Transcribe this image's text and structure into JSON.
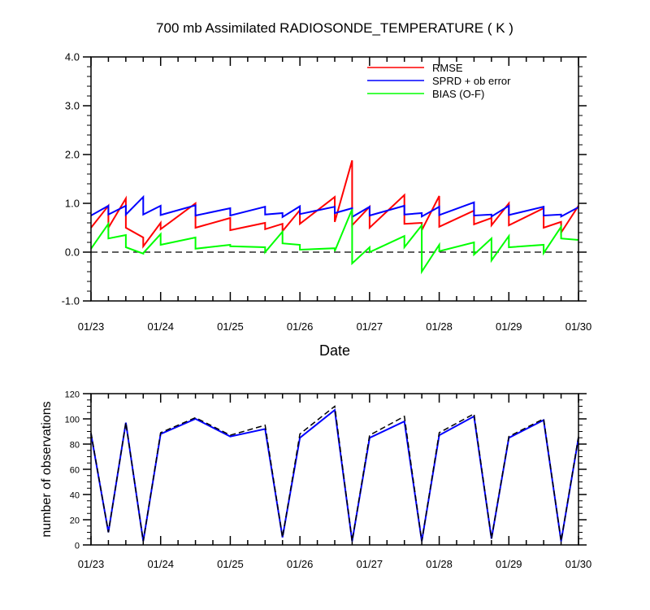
{
  "chart_data": [
    {
      "type": "line",
      "title": "700 mb Assimilated RADIOSONDE_TEMPERATURE ( K )",
      "xlabel": "Date",
      "ylabel": "",
      "ylim": [
        -1.0,
        4.0
      ],
      "yticks": [
        "-1.0",
        "0.0",
        "1.0",
        "2.0",
        "3.0",
        "4.0"
      ],
      "xticks": [
        "01/23",
        "01/24",
        "01/25",
        "01/26",
        "01/27",
        "01/28",
        "01/29",
        "01/30"
      ],
      "xlim": [
        0,
        7
      ],
      "zero_line": "dashed",
      "legend_position": "top-right",
      "series": [
        {
          "name": "RMSE",
          "color": "#ff0000",
          "points": [
            [
              0,
              0.5
            ],
            [
              0.25,
              0.95
            ],
            [
              0.25,
              0.5
            ],
            [
              0.5,
              1.1
            ],
            [
              0.5,
              0.5
            ],
            [
              0.75,
              0.3
            ],
            [
              0.75,
              0.12
            ],
            [
              1,
              0.6
            ],
            [
              1,
              0.47
            ],
            [
              1.5,
              1.0
            ],
            [
              1.5,
              0.5
            ],
            [
              2,
              0.7
            ],
            [
              2,
              0.45
            ],
            [
              2.5,
              0.6
            ],
            [
              2.5,
              0.47
            ],
            [
              2.75,
              0.58
            ],
            [
              2.75,
              0.43
            ],
            [
              3,
              0.86
            ],
            [
              3,
              0.58
            ],
            [
              3.5,
              1.13
            ],
            [
              3.5,
              0.62
            ],
            [
              3.75,
              1.88
            ],
            [
              3.75,
              0.55
            ],
            [
              4,
              0.93
            ],
            [
              4,
              0.5
            ],
            [
              4.5,
              1.17
            ],
            [
              4.5,
              0.58
            ],
            [
              4.75,
              0.6
            ],
            [
              4.75,
              0.45
            ],
            [
              5,
              1.15
            ],
            [
              5,
              0.52
            ],
            [
              5.5,
              0.85
            ],
            [
              5.5,
              0.57
            ],
            [
              5.75,
              0.7
            ],
            [
              5.75,
              0.55
            ],
            [
              6,
              1.0
            ],
            [
              6,
              0.55
            ],
            [
              6.5,
              0.9
            ],
            [
              6.5,
              0.5
            ],
            [
              6.75,
              0.62
            ],
            [
              6.75,
              0.4
            ],
            [
              7,
              0.95
            ]
          ]
        },
        {
          "name": "SPRD + ob error",
          "color": "#0000ff",
          "points": [
            [
              0,
              0.75
            ],
            [
              0.25,
              0.95
            ],
            [
              0.25,
              0.77
            ],
            [
              0.5,
              0.95
            ],
            [
              0.5,
              0.77
            ],
            [
              0.75,
              1.13
            ],
            [
              0.75,
              0.77
            ],
            [
              1,
              0.95
            ],
            [
              1,
              0.76
            ],
            [
              1.5,
              0.96
            ],
            [
              1.5,
              0.75
            ],
            [
              2,
              0.9
            ],
            [
              2,
              0.75
            ],
            [
              2.5,
              0.93
            ],
            [
              2.5,
              0.77
            ],
            [
              2.75,
              0.8
            ],
            [
              2.75,
              0.72
            ],
            [
              3,
              0.94
            ],
            [
              3,
              0.78
            ],
            [
              3.5,
              0.93
            ],
            [
              3.5,
              0.8
            ],
            [
              3.75,
              0.9
            ],
            [
              3.75,
              0.72
            ],
            [
              4,
              0.93
            ],
            [
              4,
              0.75
            ],
            [
              4.5,
              0.95
            ],
            [
              4.5,
              0.77
            ],
            [
              4.75,
              0.8
            ],
            [
              4.75,
              0.73
            ],
            [
              5,
              0.93
            ],
            [
              5,
              0.76
            ],
            [
              5.5,
              1.02
            ],
            [
              5.5,
              0.75
            ],
            [
              5.75,
              0.77
            ],
            [
              5.75,
              0.73
            ],
            [
              6,
              0.95
            ],
            [
              6,
              0.76
            ],
            [
              6.5,
              0.93
            ],
            [
              6.5,
              0.75
            ],
            [
              6.75,
              0.77
            ],
            [
              6.75,
              0.73
            ],
            [
              7,
              0.92
            ]
          ]
        },
        {
          "name": "BIAS (O-F)",
          "color": "#00ff00",
          "points": [
            [
              0,
              0.07
            ],
            [
              0.25,
              0.58
            ],
            [
              0.25,
              0.28
            ],
            [
              0.5,
              0.35
            ],
            [
              0.5,
              0.1
            ],
            [
              0.75,
              -0.03
            ],
            [
              0.75,
              -0.02
            ],
            [
              1,
              0.37
            ],
            [
              1,
              0.15
            ],
            [
              1.5,
              0.3
            ],
            [
              1.5,
              0.07
            ],
            [
              2,
              0.15
            ],
            [
              2,
              0.12
            ],
            [
              2.5,
              0.1
            ],
            [
              2.5,
              0.0
            ],
            [
              2.75,
              0.42
            ],
            [
              2.75,
              0.18
            ],
            [
              3,
              0.15
            ],
            [
              3,
              0.05
            ],
            [
              3.5,
              0.08
            ],
            [
              3.5,
              0.02
            ],
            [
              3.75,
              0.88
            ],
            [
              3.75,
              -0.23
            ],
            [
              4,
              0.1
            ],
            [
              4,
              0.0
            ],
            [
              4.5,
              0.33
            ],
            [
              4.5,
              0.1
            ],
            [
              4.75,
              0.55
            ],
            [
              4.75,
              -0.4
            ],
            [
              5,
              0.15
            ],
            [
              5,
              0.02
            ],
            [
              5.5,
              0.2
            ],
            [
              5.5,
              -0.05
            ],
            [
              5.75,
              0.28
            ],
            [
              5.75,
              -0.17
            ],
            [
              6,
              0.33
            ],
            [
              6,
              0.1
            ],
            [
              6.5,
              0.15
            ],
            [
              6.5,
              -0.02
            ],
            [
              6.75,
              0.52
            ],
            [
              6.75,
              0.28
            ],
            [
              7,
              0.25
            ]
          ]
        }
      ]
    },
    {
      "type": "line",
      "title": "",
      "xlabel": "",
      "ylabel": "number of observations",
      "ylim": [
        0,
        120
      ],
      "yticks": [
        "0",
        "20",
        "40",
        "60",
        "80",
        "100",
        "120"
      ],
      "xticks": [
        "01/23",
        "01/24",
        "01/25",
        "01/26",
        "01/27",
        "01/28",
        "01/29",
        "01/30"
      ],
      "xlim": [
        0,
        7
      ],
      "series": [
        {
          "color": "#0000ff",
          "style": "solid",
          "points": [
            [
              0,
              88
            ],
            [
              0.25,
              10
            ],
            [
              0.5,
              97
            ],
            [
              0.75,
              3
            ],
            [
              1,
              88
            ],
            [
              1.5,
              100
            ],
            [
              2,
              86
            ],
            [
              2.5,
              92
            ],
            [
              2.75,
              6
            ],
            [
              3,
              85
            ],
            [
              3.5,
              107
            ],
            [
              3.75,
              3
            ],
            [
              4,
              85
            ],
            [
              4.5,
              98
            ],
            [
              4.75,
              3
            ],
            [
              5,
              87
            ],
            [
              5.5,
              102
            ],
            [
              5.75,
              5
            ],
            [
              6,
              85
            ],
            [
              6.5,
              99
            ],
            [
              6.75,
              3
            ],
            [
              7,
              85
            ]
          ]
        },
        {
          "color": "#000000",
          "style": "dashed",
          "points": [
            [
              0,
              89
            ],
            [
              0.25,
              10
            ],
            [
              0.5,
              97
            ],
            [
              0.75,
              3
            ],
            [
              1,
              89
            ],
            [
              1.5,
              101
            ],
            [
              2,
              87
            ],
            [
              2.5,
              95
            ],
            [
              2.75,
              6
            ],
            [
              3,
              88
            ],
            [
              3.5,
              110
            ],
            [
              3.75,
              3
            ],
            [
              4,
              87
            ],
            [
              4.5,
              102
            ],
            [
              4.75,
              3
            ],
            [
              5,
              89
            ],
            [
              5.5,
              104
            ],
            [
              5.75,
              5
            ],
            [
              6,
              86
            ],
            [
              6.5,
              100
            ],
            [
              6.75,
              3
            ],
            [
              7,
              86
            ]
          ]
        }
      ]
    }
  ]
}
